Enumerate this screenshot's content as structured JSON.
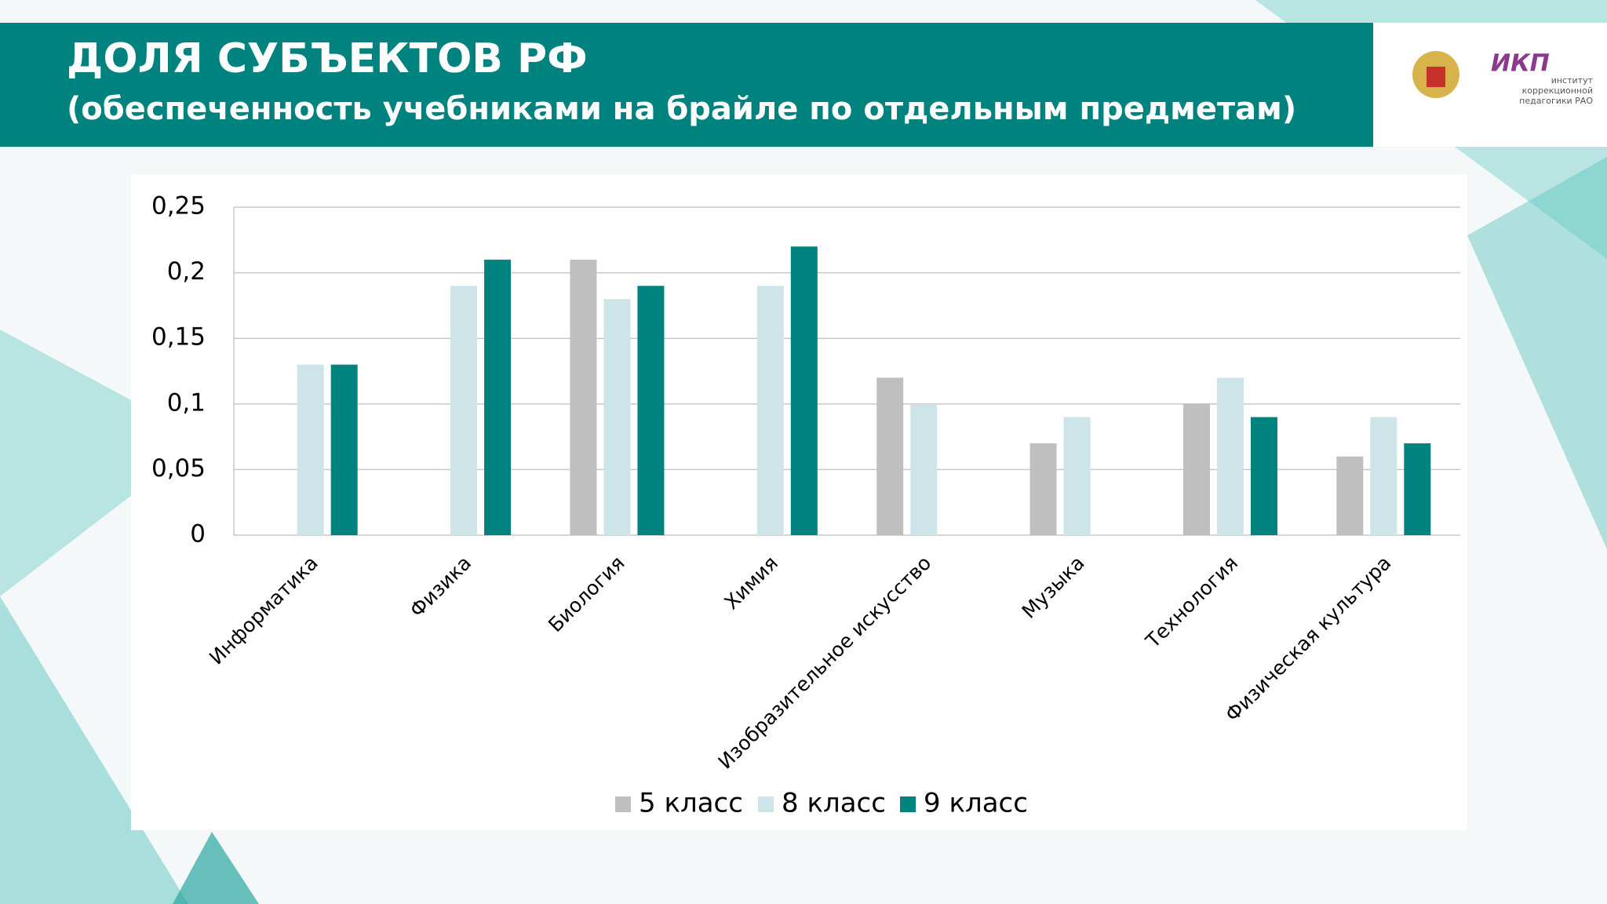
{
  "header": {
    "title": "ДОЛЯ СУБЪЕКТОВ РФ",
    "subtitle": "(обеспеченность учебниками на брайле по отдельным предметам)",
    "logo_name": "ИКП",
    "logo_caption": [
      "институт",
      "коррекционной",
      "педагогики РАО"
    ]
  },
  "chart_data": {
    "type": "bar",
    "categories": [
      "Информатика",
      "Физика",
      "Биология",
      "Химия",
      "Изобразительное искусство",
      "Музыка",
      "Технология",
      "Физическая культура"
    ],
    "series": [
      {
        "name": "5 класс",
        "color": "#bfbfbf",
        "values": [
          null,
          null,
          0.21,
          null,
          0.12,
          0.07,
          0.1,
          0.06
        ]
      },
      {
        "name": "8 класс",
        "color": "#cde4e8",
        "values": [
          0.13,
          0.19,
          0.18,
          0.19,
          0.1,
          0.09,
          0.12,
          0.09
        ]
      },
      {
        "name": "9 класс",
        "color": "#00837f",
        "values": [
          0.13,
          0.21,
          0.19,
          0.22,
          null,
          null,
          0.09,
          0.07
        ]
      }
    ],
    "ylim": [
      0,
      0.25
    ],
    "yticks": [
      0,
      {
        "value": 0.05,
        "label": "0,05"
      },
      {
        "value": 0.1,
        "label": "0,1"
      },
      {
        "value": 0.15,
        "label": "0,15"
      },
      {
        "value": 0.2,
        "label": "0,2"
      },
      {
        "value": 0.25,
        "label": "0,25"
      }
    ],
    "grid": true,
    "legend": "bottom"
  }
}
